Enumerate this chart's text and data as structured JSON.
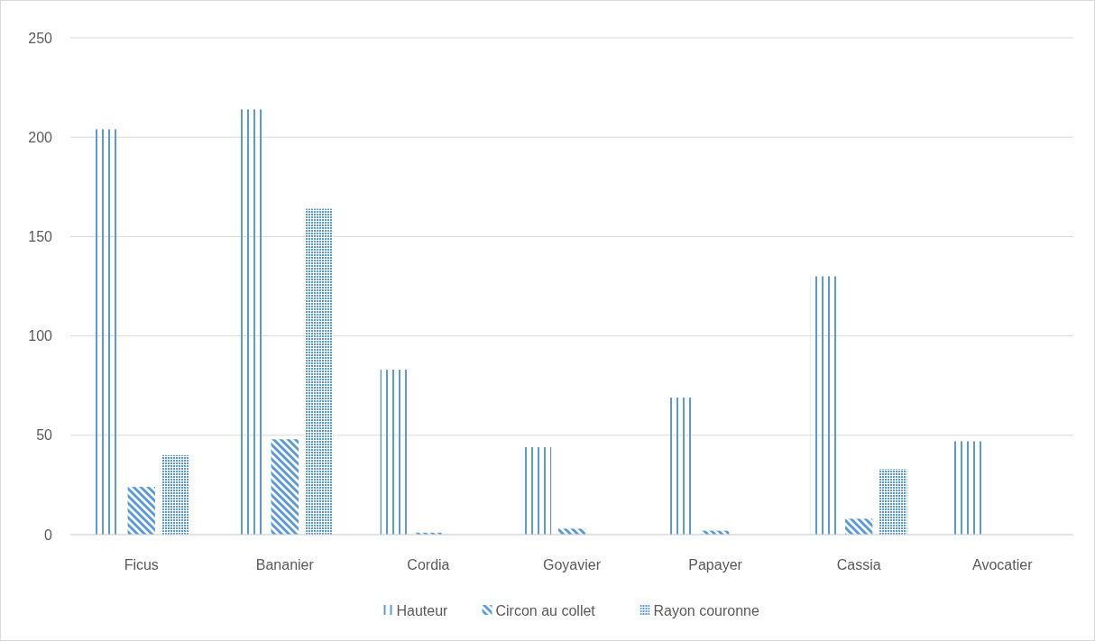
{
  "chart_data": {
    "type": "bar",
    "categories": [
      "Ficus",
      "Bananier",
      "Cordia",
      "Goyavier",
      "Papayer",
      "Cassia",
      "Avocatier"
    ],
    "series": [
      {
        "name": "Hauteur",
        "color": "#5b9bd5",
        "values": [
          204,
          214,
          83,
          44,
          69,
          130,
          47
        ]
      },
      {
        "name": "Circon au collet",
        "color": "#5b9bd5",
        "values": [
          24,
          48,
          1,
          3,
          2,
          8,
          0
        ]
      },
      {
        "name": "Rayon couronne",
        "color": "#5b9bd5",
        "values": [
          40,
          164,
          0,
          0,
          0,
          33,
          0
        ]
      }
    ],
    "ylim": [
      0,
      250
    ],
    "yticks": [
      0,
      50,
      100,
      150,
      200,
      250
    ],
    "grid": "y",
    "legend": "bottom"
  }
}
